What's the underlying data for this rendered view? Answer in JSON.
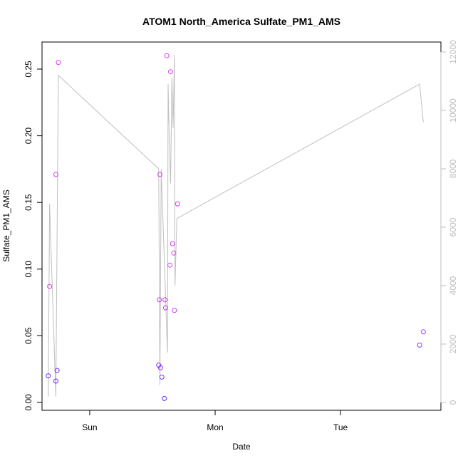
{
  "chart_data": {
    "type": "scatter",
    "title": "ATOM1 North_America Sulfate_PM1_AMS",
    "xlabel": "Date",
    "ylabel": "Sulfate_PM1_AMS",
    "ylim": [
      0,
      0.27
    ],
    "yticks": [
      "0.00",
      "0.05",
      "0.10",
      "0.15",
      "0.20",
      "0.25"
    ],
    "y2lim": [
      -300,
      12300
    ],
    "y2ticks": [
      "0",
      "2000",
      "4000",
      "6000",
      "8000",
      "10000",
      "12000"
    ],
    "x_day_ticks": [
      "Sun",
      "Mon",
      "Tue"
    ],
    "xlim_days": [
      -0.38,
      2.8
    ],
    "grid": false,
    "legend": "none",
    "point_colors": {
      "low": "#5b2bff",
      "high": "#e03cf0"
    },
    "line_color": "#bfbfbf",
    "points": [
      {
        "t": -0.33,
        "y": 0.02
      },
      {
        "t": -0.32,
        "y": 0.087
      },
      {
        "t": -0.27,
        "y": 0.171
      },
      {
        "t": -0.27,
        "y": 0.016
      },
      {
        "t": -0.26,
        "y": 0.024
      },
      {
        "t": -0.25,
        "y": 0.255
      },
      {
        "t": 0.55,
        "y": 0.028
      },
      {
        "t": 0.555,
        "y": 0.077
      },
      {
        "t": 0.56,
        "y": 0.171
      },
      {
        "t": 0.565,
        "y": 0.026
      },
      {
        "t": 0.575,
        "y": 0.019
      },
      {
        "t": 0.595,
        "y": 0.003
      },
      {
        "t": 0.6,
        "y": 0.077
      },
      {
        "t": 0.605,
        "y": 0.071
      },
      {
        "t": 0.615,
        "y": 0.26
      },
      {
        "t": 0.64,
        "y": 0.103
      },
      {
        "t": 0.645,
        "y": 0.248
      },
      {
        "t": 0.66,
        "y": 0.119
      },
      {
        "t": 0.67,
        "y": 0.112
      },
      {
        "t": 0.675,
        "y": 0.069
      },
      {
        "t": 0.7,
        "y": 0.149
      },
      {
        "t": 2.63,
        "y": 0.043
      },
      {
        "t": 2.66,
        "y": 0.053
      }
    ],
    "secondary_series": [
      {
        "t": -0.33,
        "y": 200
      },
      {
        "t": -0.32,
        "y": 6800
      },
      {
        "t": -0.27,
        "y": 200
      },
      {
        "t": -0.25,
        "y": 11200
      },
      {
        "t": 0.55,
        "y": 8000
      },
      {
        "t": 0.56,
        "y": 600
      },
      {
        "t": 0.57,
        "y": 8000
      },
      {
        "t": 0.62,
        "y": 1700
      },
      {
        "t": 0.625,
        "y": 10900
      },
      {
        "t": 0.63,
        "y": 9800
      },
      {
        "t": 0.645,
        "y": 7500
      },
      {
        "t": 0.655,
        "y": 11100
      },
      {
        "t": 0.665,
        "y": 9400
      },
      {
        "t": 0.675,
        "y": 11900
      },
      {
        "t": 0.68,
        "y": 4000
      },
      {
        "t": 0.695,
        "y": 6300
      },
      {
        "t": 2.63,
        "y": 10900
      },
      {
        "t": 2.66,
        "y": 9600
      }
    ]
  }
}
